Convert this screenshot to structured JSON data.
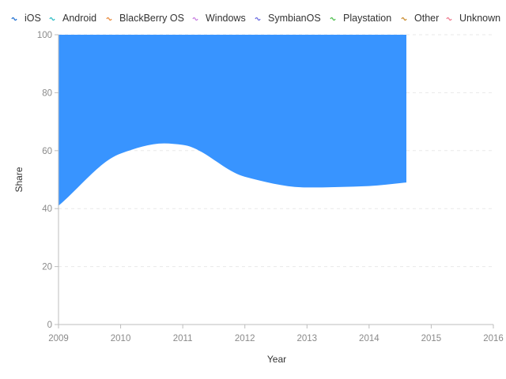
{
  "chart_data": {
    "type": "area",
    "xlabel": "Year",
    "ylabel": "Share",
    "xlim": [
      2009,
      2016
    ],
    "ylim": [
      0,
      100
    ],
    "x_ticks": [
      2009,
      2010,
      2011,
      2012,
      2013,
      2014,
      2015,
      2016
    ],
    "y_ticks": [
      0,
      20,
      40,
      60,
      80,
      100
    ],
    "grid": "horizontal dashed",
    "legend_position": "top",
    "legend": [
      {
        "name": "iOS",
        "color": "#1f6fd1"
      },
      {
        "name": "Android",
        "color": "#2bbcc4"
      },
      {
        "name": "BlackBerry OS",
        "color": "#e8893a"
      },
      {
        "name": "Windows",
        "color": "#c77de0"
      },
      {
        "name": "SymbianOS",
        "color": "#6a6ae0"
      },
      {
        "name": "Playstation",
        "color": "#4cbf4c"
      },
      {
        "name": "Other",
        "color": "#c98a2a"
      },
      {
        "name": "Unknown",
        "color": "#ee7a8e"
      }
    ],
    "series": [
      {
        "name": "iOS",
        "color": "#3894ff",
        "x": [
          2009,
          2010,
          2010.7,
          2011,
          2012,
          2013,
          2014,
          2014.6
        ],
        "lower": [
          41,
          59,
          62.5,
          62,
          51,
          47.3,
          47.8,
          49
        ],
        "upper": [
          100,
          100,
          100,
          100,
          100,
          100,
          100,
          100
        ]
      }
    ]
  }
}
